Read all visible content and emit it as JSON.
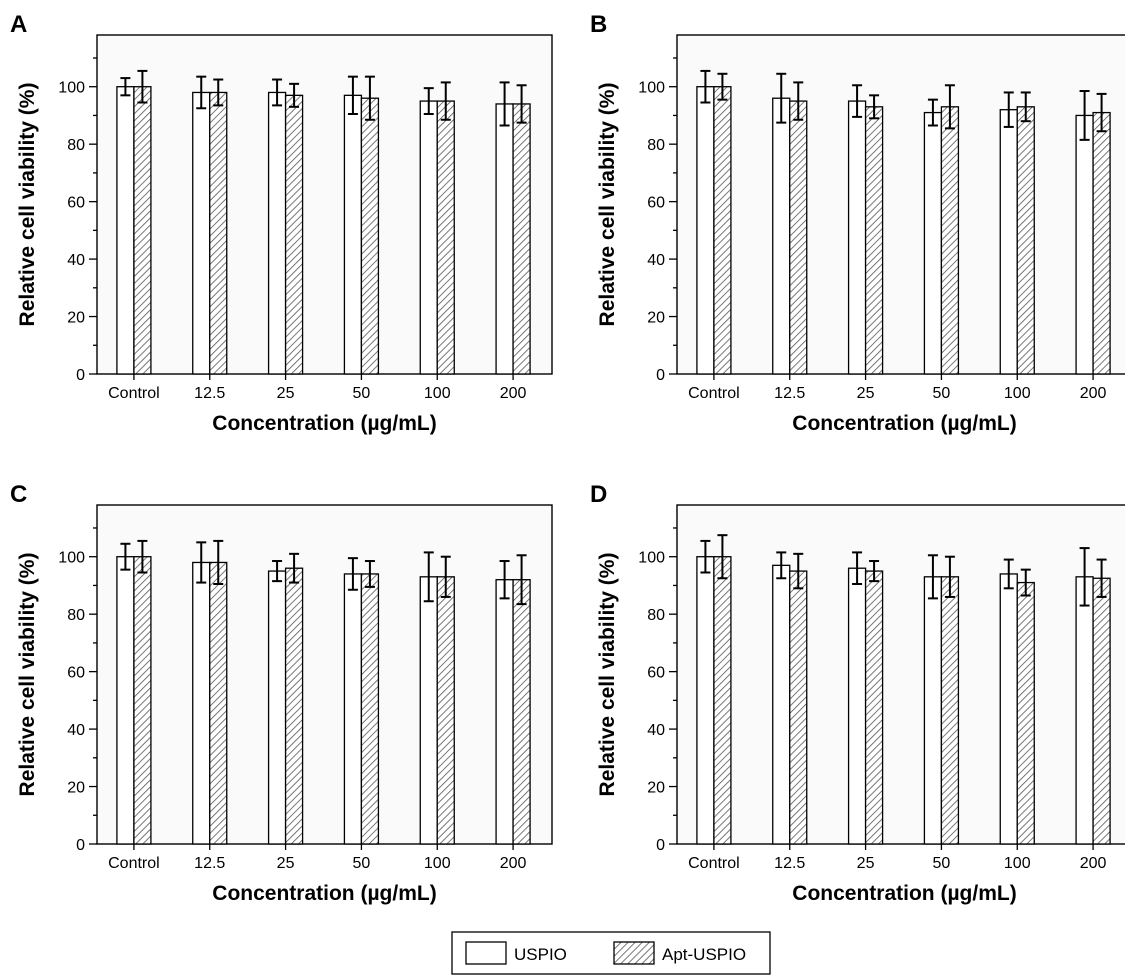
{
  "legend": {
    "items": [
      {
        "label": "USPIO",
        "pattern": "open"
      },
      {
        "label": "Apt-USPIO",
        "pattern": "hatched"
      }
    ]
  },
  "chart_data": [
    {
      "panel": "A",
      "type": "bar",
      "xlabel": "Concentration (µg/mL)",
      "ylabel": "Relative cell viability (%)",
      "ylim": [
        0,
        118
      ],
      "yticks": [
        0,
        20,
        40,
        60,
        80,
        100
      ],
      "categories": [
        "Control",
        "12.5",
        "25",
        "50",
        "100",
        "200"
      ],
      "series": [
        {
          "name": "USPIO",
          "values": [
            100,
            98,
            98,
            97,
            95,
            94
          ],
          "errors": [
            3,
            5.5,
            4.5,
            6.5,
            4.5,
            7.5
          ]
        },
        {
          "name": "Apt-USPIO",
          "values": [
            100,
            98,
            97,
            96,
            95,
            94
          ],
          "errors": [
            5.5,
            4.5,
            4,
            7.5,
            6.5,
            6.5
          ]
        }
      ]
    },
    {
      "panel": "B",
      "type": "bar",
      "xlabel": "Concentration (µg/mL)",
      "ylabel": "Relative cell viability (%)",
      "ylim": [
        0,
        118
      ],
      "yticks": [
        0,
        20,
        40,
        60,
        80,
        100
      ],
      "categories": [
        "Control",
        "12.5",
        "25",
        "50",
        "100",
        "200"
      ],
      "series": [
        {
          "name": "USPIO",
          "values": [
            100,
            96,
            95,
            91,
            92,
            90
          ],
          "errors": [
            5.5,
            8.5,
            5.5,
            4.5,
            6,
            8.5
          ]
        },
        {
          "name": "Apt-USPIO",
          "values": [
            100,
            95,
            93,
            93,
            93,
            91
          ],
          "errors": [
            4.5,
            6.5,
            4,
            7.5,
            5,
            6.5
          ]
        }
      ]
    },
    {
      "panel": "C",
      "type": "bar",
      "xlabel": "Concentration (µg/mL)",
      "ylabel": "Relative cell viability (%)",
      "ylim": [
        0,
        118
      ],
      "yticks": [
        0,
        20,
        40,
        60,
        80,
        100
      ],
      "categories": [
        "Control",
        "12.5",
        "25",
        "50",
        "100",
        "200"
      ],
      "series": [
        {
          "name": "USPIO",
          "values": [
            100,
            98,
            95,
            94,
            93,
            92
          ],
          "errors": [
            4.5,
            7,
            3.5,
            5.5,
            8.5,
            6.5
          ]
        },
        {
          "name": "Apt-USPIO",
          "values": [
            100,
            98,
            96,
            94,
            93,
            92
          ],
          "errors": [
            5.5,
            7.5,
            5,
            4.5,
            7,
            8.5
          ]
        }
      ]
    },
    {
      "panel": "D",
      "type": "bar",
      "xlabel": "Concentration (µg/mL)",
      "ylabel": "Relative cell viability (%)",
      "ylim": [
        0,
        118
      ],
      "yticks": [
        0,
        20,
        40,
        60,
        80,
        100
      ],
      "categories": [
        "Control",
        "12.5",
        "25",
        "50",
        "100",
        "200"
      ],
      "series": [
        {
          "name": "USPIO",
          "values": [
            100,
            97,
            96,
            93,
            94,
            93
          ],
          "errors": [
            5.5,
            4.5,
            5.5,
            7.5,
            5,
            10
          ]
        },
        {
          "name": "Apt-USPIO",
          "values": [
            100,
            95,
            95,
            93,
            91,
            92.5
          ],
          "errors": [
            7.5,
            6,
            3.5,
            7,
            4.5,
            6.5
          ]
        }
      ]
    }
  ]
}
